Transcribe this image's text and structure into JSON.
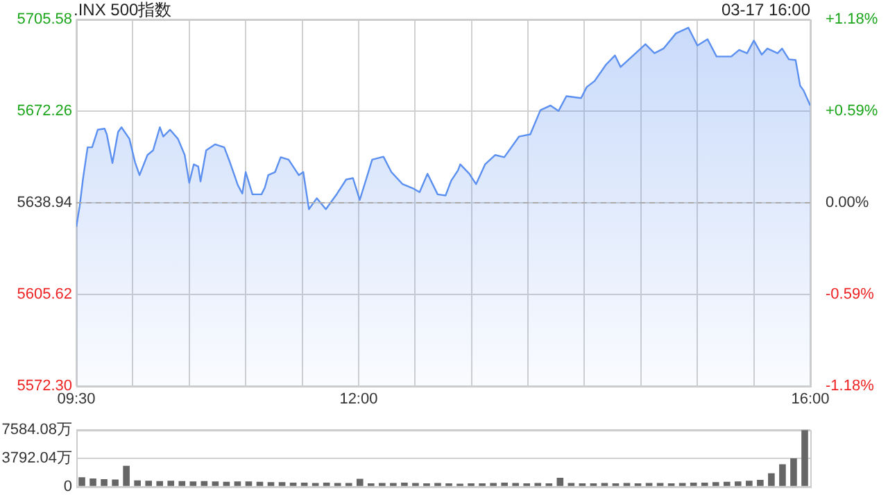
{
  "chart_data": [
    {
      "type": "area",
      "title": ".INX 500指数",
      "annotations": [
        "03-17 16:00"
      ],
      "xlim": [
        9.5,
        16
      ],
      "xticks": [
        {
          "value": 9.5,
          "label": "09:30"
        },
        {
          "value": 10,
          "label": null
        },
        {
          "value": 10.5,
          "label": null
        },
        {
          "value": 11,
          "label": null
        },
        {
          "value": 11.5,
          "label": null
        },
        {
          "value": 12,
          "label": "12:00"
        },
        {
          "value": 12.5,
          "label": null
        },
        {
          "value": 13,
          "label": null
        },
        {
          "value": 13.5,
          "label": null
        },
        {
          "value": 14,
          "label": null
        },
        {
          "value": 14.5,
          "label": null
        },
        {
          "value": 15,
          "label": null
        },
        {
          "value": 15.5,
          "label": null
        },
        {
          "value": 16,
          "label": "16:00"
        }
      ],
      "ylim": [
        5572.3,
        5705.58
      ],
      "yticks": [
        {
          "value": 5572.3,
          "label": "5572.30"
        },
        5605.62,
        5638.94,
        5672.26,
        5705.58
      ],
      "y2lim": [
        -1.18,
        1.18
      ],
      "y2ticks": [
        {
          "value": -1.18,
          "label": "-1.18%"
        },
        {
          "value": -0.59,
          "label": "-0.59%"
        },
        {
          "value": 0,
          "label": "0.00%"
        },
        {
          "value": 0.59,
          "label": "+0.59%"
        },
        {
          "value": 1.18,
          "label": "+1.18%"
        }
      ],
      "ref_lines": [
        {
          "axis": "y",
          "value": 5638.94,
          "line_style": "dashed",
          "color": "#aaaaaa"
        }
      ],
      "grid": true,
      "series": [
        {
          "color": "#5b8ff0",
          "x": [
            9.5,
            9.53,
            9.56,
            9.6,
            9.64,
            9.69,
            9.75,
            9.77,
            9.82,
            9.87,
            9.9,
            9.97,
            10.02,
            10.06,
            10.13,
            10.18,
            10.24,
            10.27,
            10.33,
            10.4,
            10.46,
            10.5,
            10.54,
            10.58,
            10.6,
            10.65,
            10.73,
            10.81,
            10.86,
            10.93,
            10.97,
            11,
            11.06,
            11.14,
            11.17,
            11.2,
            11.26,
            11.31,
            11.38,
            11.47,
            11.51,
            11.56,
            11.63,
            11.71,
            11.81,
            11.89,
            11.95,
            12.01,
            12.07,
            12.12,
            12.22,
            12.29,
            12.39,
            12.49,
            12.54,
            12.61,
            12.7,
            12.77,
            12.82,
            12.88,
            12.9,
            12.98,
            13.04,
            13.12,
            13.21,
            13.29,
            13.42,
            13.52,
            13.61,
            13.7,
            13.77,
            13.84,
            13.97,
            14.02,
            14.09,
            14.19,
            14.27,
            14.32,
            14.44,
            14.54,
            14.62,
            14.7,
            14.81,
            14.92,
            15,
            15.09,
            15.17,
            15.3,
            15.37,
            15.44,
            15.5,
            15.57,
            15.62,
            15.71,
            15.75,
            15.81,
            15.87,
            15.91,
            15.94,
            16
          ],
          "values": [
            5630.2,
            5637.8,
            5647.9,
            5659.1,
            5659.1,
            5665.5,
            5665.9,
            5663.8,
            5653.4,
            5664.7,
            5666.4,
            5662.2,
            5653.7,
            5649.0,
            5656.3,
            5658.0,
            5666.4,
            5663.0,
            5665.5,
            5662.2,
            5656.3,
            5646.2,
            5652.9,
            5652.1,
            5646.7,
            5658.0,
            5660.2,
            5659.1,
            5653.7,
            5645.4,
            5642.3,
            5650.1,
            5642.0,
            5642.0,
            5644.5,
            5649.0,
            5650.1,
            5655.5,
            5654.6,
            5649.0,
            5650.1,
            5636.6,
            5640.6,
            5636.6,
            5642.3,
            5647.4,
            5647.9,
            5640.0,
            5647.9,
            5654.6,
            5655.7,
            5650.1,
            5645.7,
            5644.0,
            5642.8,
            5649.5,
            5642.0,
            5641.6,
            5647.0,
            5650.7,
            5652.9,
            5649.5,
            5645.7,
            5652.9,
            5656.3,
            5655.5,
            5663.0,
            5663.8,
            5672.6,
            5674.3,
            5672.3,
            5677.7,
            5677.0,
            5681.0,
            5683.2,
            5689.1,
            5692.5,
            5688.3,
            5692.8,
            5696.6,
            5693.3,
            5695.0,
            5700.5,
            5702.6,
            5696.1,
            5698.4,
            5692.1,
            5692.1,
            5694.5,
            5693.3,
            5697.9,
            5692.8,
            5695.0,
            5693.3,
            5695.0,
            5691.1,
            5690.8,
            5681.5,
            5679.8,
            5674.3
          ]
        }
      ]
    },
    {
      "type": "bar",
      "tick_labels": "y",
      "grid": "y",
      "ylim": [
        0,
        7584.08
      ],
      "yticks": [
        0,
        {
          "value": 3792.04,
          "label": "3792.04万"
        },
        {
          "value": 7584.08,
          "label": "7584.08万"
        }
      ],
      "categories": [
        null,
        null,
        null,
        null,
        null,
        null,
        null,
        null,
        null,
        null,
        null,
        null,
        null,
        null,
        null,
        null,
        null,
        null,
        null,
        null,
        null,
        null,
        null,
        null,
        null,
        null,
        null,
        null,
        null,
        null,
        null,
        null,
        null,
        null,
        null,
        null,
        null,
        null,
        null,
        null,
        null,
        null,
        null,
        null,
        null,
        null,
        null,
        null,
        null,
        null,
        null,
        null,
        null,
        null,
        null,
        null,
        null,
        null,
        null,
        null,
        null,
        null,
        null,
        null,
        null,
        null
      ],
      "color": "#666666",
      "values": [
        1250,
        1100,
        1000,
        950,
        2800,
        850,
        800,
        750,
        800,
        750,
        700,
        750,
        700,
        650,
        700,
        700,
        650,
        600,
        600,
        550,
        550,
        500,
        550,
        500,
        500,
        1050,
        450,
        500,
        500,
        550,
        500,
        450,
        500,
        450,
        400,
        450,
        450,
        500,
        550,
        500,
        450,
        500,
        450,
        1200,
        500,
        450,
        450,
        500,
        450,
        500,
        450,
        500,
        500,
        450,
        500,
        550,
        550,
        600,
        650,
        700,
        800,
        900,
        1800,
        3000,
        3800,
        7580
      ]
    }
  ]
}
